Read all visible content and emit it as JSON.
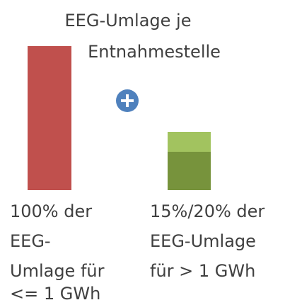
{
  "title": {
    "lines": [
      "EEG-Umlage je",
      "Entnahmestelle"
    ]
  },
  "left": {
    "lines": [
      "100% der",
      "EEG-",
      "Umlage für",
      "<= 1 GWh"
    ]
  },
  "right": {
    "lines": [
      "15%/20% der",
      "EEG-Umlage",
      "für > 1 GWh"
    ]
  }
}
